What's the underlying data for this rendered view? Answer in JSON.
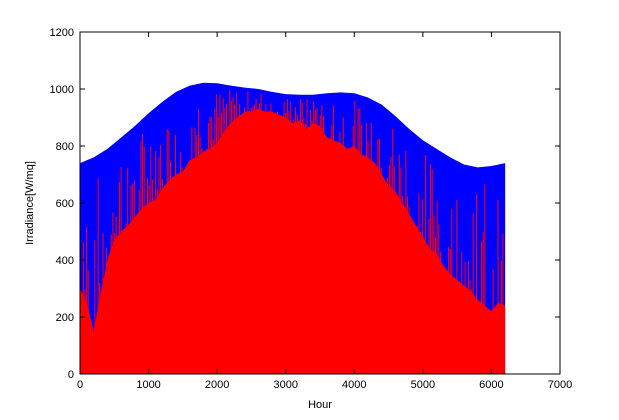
{
  "chart_data": {
    "type": "area",
    "xlabel": "Hour",
    "ylabel": "Irradiance[W/mq]",
    "xlim": [
      0,
      7000
    ],
    "ylim": [
      0,
      1200
    ],
    "x_ticks": [
      0,
      1000,
      2000,
      3000,
      4000,
      5000,
      6000,
      7000
    ],
    "y_ticks": [
      0,
      200,
      400,
      600,
      800,
      1000,
      1200
    ],
    "grid": false,
    "legend": false,
    "series": [
      {
        "color": "#0000ff",
        "x": [
          0,
          200,
          400,
          600,
          800,
          1000,
          1200,
          1400,
          1600,
          1800,
          2000,
          2200,
          2400,
          2600,
          2800,
          3000,
          3200,
          3400,
          3600,
          3800,
          4000,
          4200,
          4400,
          4600,
          4800,
          5000,
          5200,
          5400,
          5600,
          5800,
          6000,
          6200
        ],
        "values": [
          740,
          760,
          790,
          830,
          870,
          915,
          955,
          990,
          1012,
          1022,
          1020,
          1012,
          1005,
          1000,
          990,
          982,
          980,
          980,
          985,
          988,
          985,
          970,
          945,
          905,
          860,
          820,
          790,
          760,
          735,
          725,
          730,
          740
        ]
      },
      {
        "color": "#ff0000",
        "x": [
          0,
          100,
          200,
          300,
          400,
          500,
          600,
          700,
          800,
          900,
          1000,
          1100,
          1200,
          1300,
          1400,
          1500,
          1600,
          1700,
          1800,
          1900,
          2000,
          2100,
          2200,
          2300,
          2400,
          2500,
          2600,
          2700,
          2800,
          2900,
          3000,
          3100,
          3200,
          3300,
          3400,
          3500,
          3600,
          3700,
          3800,
          3900,
          4000,
          4100,
          4200,
          4300,
          4400,
          4500,
          4600,
          4700,
          4800,
          4900,
          5000,
          5100,
          5200,
          5300,
          5400,
          5500,
          5600,
          5700,
          5800,
          5900,
          6000,
          6100,
          6200
        ],
        "values": [
          300,
          250,
          150,
          280,
          400,
          470,
          500,
          520,
          550,
          580,
          600,
          610,
          650,
          680,
          700,
          710,
          750,
          760,
          780,
          790,
          810,
          850,
          880,
          900,
          920,
          920,
          930,
          920,
          920,
          910,
          900,
          880,
          890,
          860,
          880,
          870,
          830,
          820,
          810,
          790,
          800,
          770,
          760,
          740,
          700,
          660,
          640,
          600,
          560,
          520,
          480,
          440,
          420,
          380,
          350,
          330,
          310,
          290,
          260,
          240,
          220,
          250,
          240
        ]
      }
    ]
  }
}
